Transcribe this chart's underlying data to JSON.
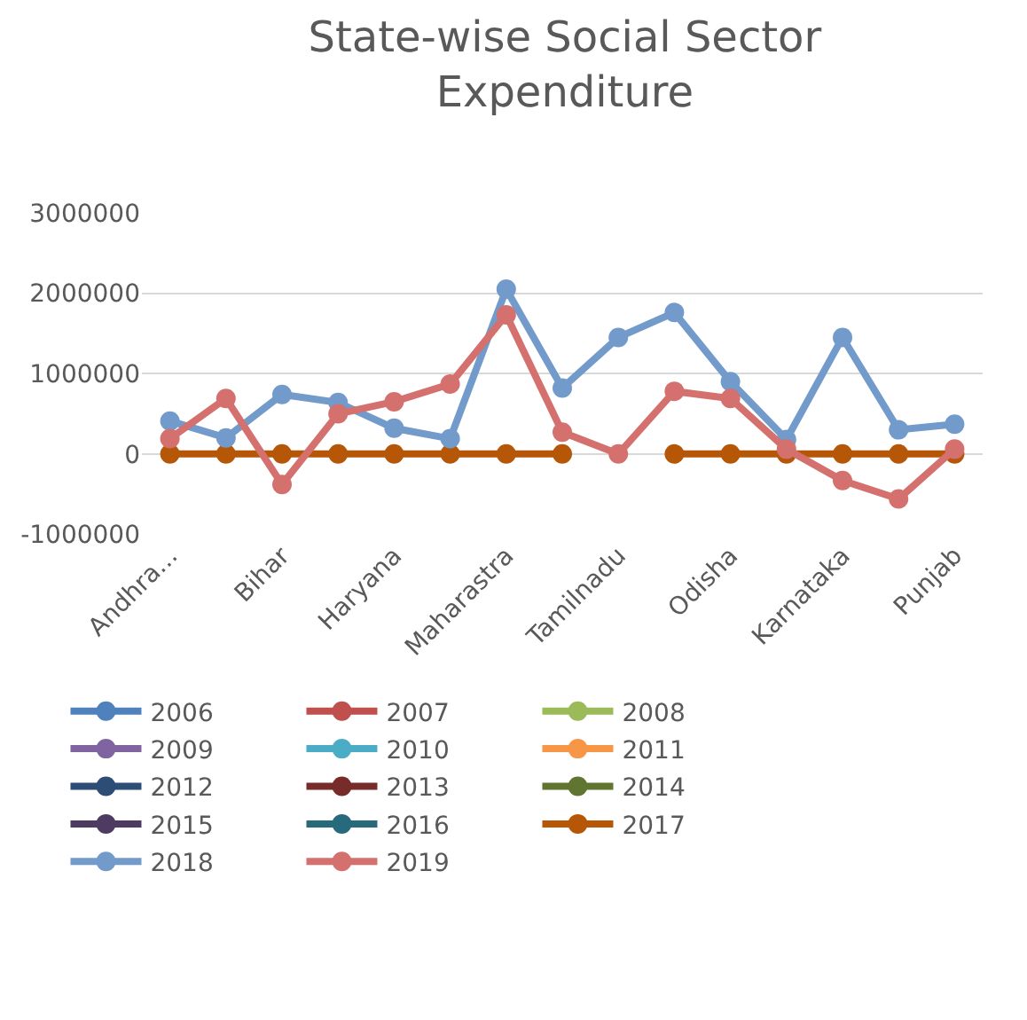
{
  "chart_data": {
    "type": "line",
    "title": "State-wise Social Sector\nExpenditure",
    "categories": [
      "Andhra...",
      null,
      "Bihar",
      null,
      "Haryana",
      null,
      "Maharastra",
      null,
      "Tamilnadu",
      null,
      "Odisha",
      null,
      "Karnataka",
      null,
      "Punjab"
    ],
    "series": [
      {
        "name": "2006",
        "color": "#4f81bd",
        "values": [
          null,
          null,
          null,
          null,
          null,
          null,
          null,
          null,
          null,
          null,
          null,
          null,
          null,
          null,
          null
        ]
      },
      {
        "name": "2007",
        "color": "#c0504d",
        "values": [
          null,
          null,
          null,
          null,
          null,
          null,
          null,
          null,
          null,
          null,
          null,
          null,
          null,
          null,
          null
        ]
      },
      {
        "name": "2008",
        "color": "#9bbb59",
        "values": [
          null,
          null,
          null,
          null,
          null,
          null,
          null,
          null,
          null,
          null,
          null,
          null,
          null,
          null,
          null
        ]
      },
      {
        "name": "2009",
        "color": "#8064a2",
        "values": [
          null,
          null,
          null,
          null,
          null,
          null,
          null,
          null,
          null,
          null,
          null,
          null,
          null,
          null,
          null
        ]
      },
      {
        "name": "2010",
        "color": "#4bacc6",
        "values": [
          null,
          null,
          null,
          null,
          null,
          null,
          null,
          null,
          null,
          null,
          null,
          null,
          null,
          null,
          null
        ]
      },
      {
        "name": "2011",
        "color": "#f79646",
        "values": [
          null,
          null,
          null,
          null,
          null,
          null,
          null,
          null,
          null,
          null,
          null,
          null,
          null,
          null,
          null
        ]
      },
      {
        "name": "2012",
        "color": "#2c4d75",
        "values": [
          null,
          null,
          null,
          null,
          null,
          null,
          null,
          null,
          null,
          null,
          null,
          null,
          null,
          null,
          null
        ]
      },
      {
        "name": "2013",
        "color": "#772c2a",
        "values": [
          null,
          null,
          null,
          null,
          null,
          null,
          null,
          null,
          null,
          null,
          null,
          null,
          null,
          null,
          null
        ]
      },
      {
        "name": "2014",
        "color": "#5f7530",
        "values": [
          null,
          null,
          null,
          null,
          null,
          null,
          null,
          null,
          null,
          null,
          null,
          null,
          null,
          null,
          null
        ]
      },
      {
        "name": "2015",
        "color": "#4d3b62",
        "values": [
          null,
          null,
          null,
          null,
          null,
          null,
          null,
          null,
          null,
          null,
          null,
          null,
          null,
          null,
          null
        ]
      },
      {
        "name": "2016",
        "color": "#276a7c",
        "values": [
          null,
          null,
          null,
          null,
          null,
          null,
          null,
          null,
          null,
          null,
          null,
          null,
          null,
          null,
          null
        ]
      },
      {
        "name": "2017",
        "color": "#b65708",
        "values": [
          0,
          0,
          0,
          0,
          0,
          0,
          0,
          0,
          null,
          0,
          0,
          0,
          0,
          0,
          0
        ]
      },
      {
        "name": "2018",
        "color": "#729aca",
        "values": [
          410000,
          200000,
          740000,
          640000,
          320000,
          190000,
          2050000,
          820000,
          1450000,
          1760000,
          900000,
          180000,
          1450000,
          300000,
          370000
        ]
      },
      {
        "name": "2019",
        "color": "#d4706e",
        "values": [
          190000,
          690000,
          -380000,
          500000,
          650000,
          870000,
          1730000,
          270000,
          0,
          780000,
          690000,
          60000,
          -330000,
          -560000,
          60000
        ]
      }
    ],
    "ylim": [
      -1000000,
      3000000
    ],
    "yticks": [
      -1000000,
      0,
      1000000,
      2000000,
      3000000
    ],
    "grid": "y",
    "legend": "bottom",
    "marker": "circle",
    "line_style": "solid"
  }
}
